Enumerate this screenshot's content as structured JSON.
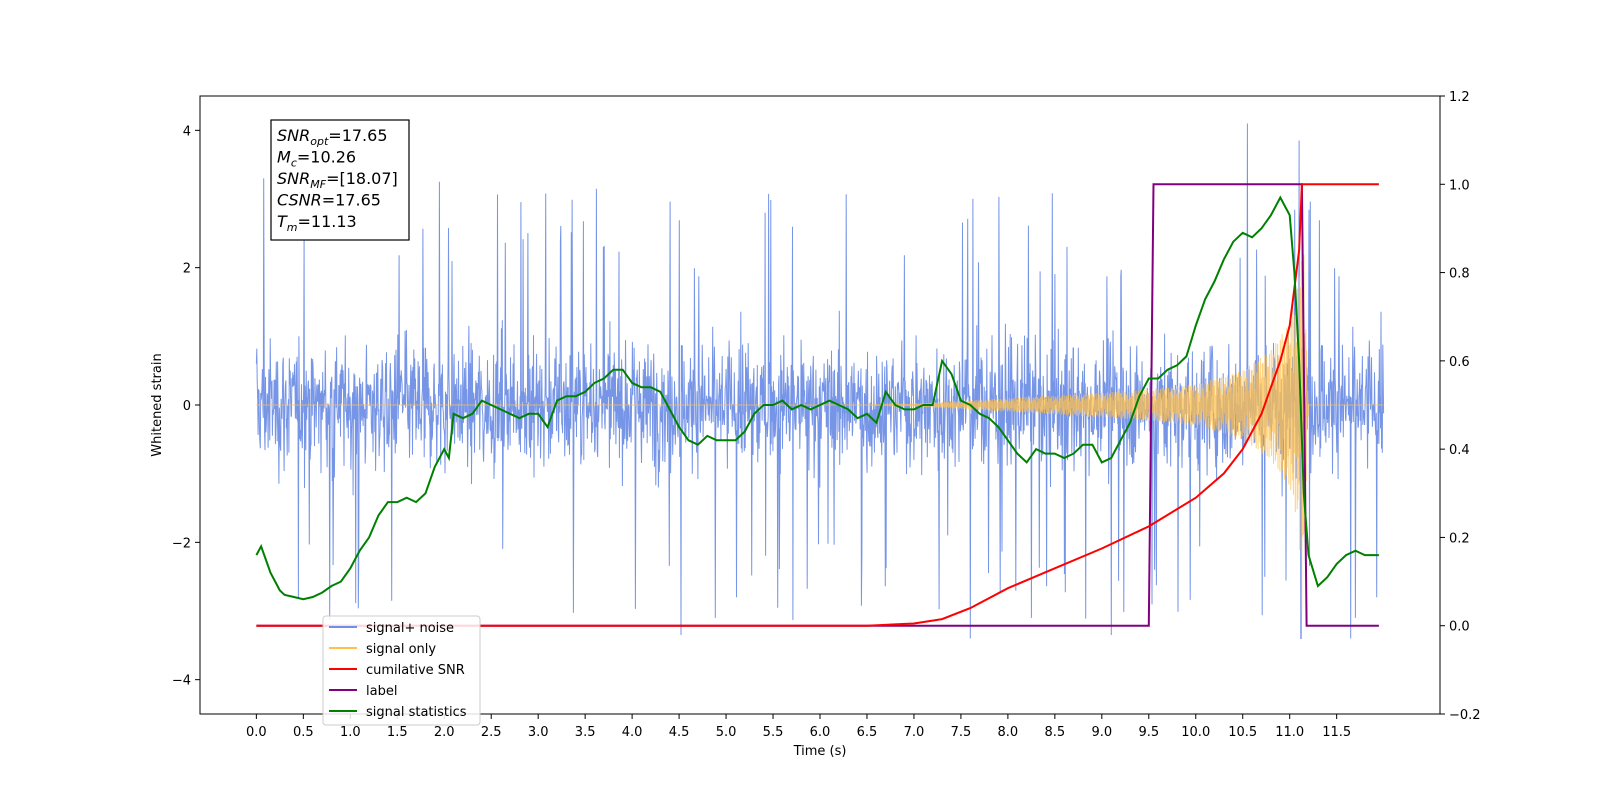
{
  "chart_data": {
    "type": "line",
    "title": "",
    "xlabel": "Time (s)",
    "ylabel": "Whitened strain",
    "y2label": "",
    "xlim": [
      -0.6,
      12.6
    ],
    "ylim": [
      -4.5,
      4.5
    ],
    "y2lim": [
      -0.2,
      1.2
    ],
    "x_ticks": [
      0.0,
      0.5,
      1.0,
      1.5,
      2.0,
      2.5,
      3.0,
      3.5,
      4.0,
      4.5,
      5.0,
      5.5,
      6.0,
      6.5,
      7.0,
      7.5,
      8.0,
      8.5,
      9.0,
      9.5,
      10.0,
      10.5,
      11.0,
      11.5
    ],
    "x_tick_labels": [
      "0.0",
      "0.5",
      "1.0",
      "1.5",
      "2.0",
      "2.5",
      "3.0",
      "3.5",
      "4.0",
      "4.5",
      "5.0",
      "5.5",
      "6.0",
      "6.5",
      "7.0",
      "7.5",
      "8.0",
      "8.5",
      "9.0",
      "9.5",
      "10.0",
      "10.5",
      "11.0",
      "11.5"
    ],
    "y_ticks": [
      -4,
      -2,
      0,
      2,
      4
    ],
    "y_tick_labels": [
      "−4",
      "−2",
      "0",
      "2",
      "4"
    ],
    "y2_ticks": [
      -0.2,
      0.0,
      0.2,
      0.4,
      0.6,
      0.8,
      1.0,
      1.2
    ],
    "y2_tick_labels": [
      "−0.2",
      "0.0",
      "0.2",
      "0.4",
      "0.6",
      "0.8",
      "1.0",
      "1.2"
    ],
    "grid": false,
    "legend": {
      "position": "lower-left",
      "entries": [
        {
          "label": "signal+ noise",
          "color": "#6f8fe6"
        },
        {
          "label": "signal only",
          "color": "#ffc04d"
        },
        {
          "label": "cumilative SNR",
          "color": "#ff0000"
        },
        {
          "label": "label",
          "color": "#800080"
        },
        {
          "label": "signal statistics",
          "color": "#008000"
        }
      ]
    },
    "annotation": {
      "position": "top-left",
      "lines": [
        {
          "base": "SNR",
          "sub": "opt",
          "value": "=17.65"
        },
        {
          "base": "M",
          "sub": "c",
          "value": "=10.26"
        },
        {
          "base": "SNR",
          "sub": "MF",
          "value": "=[18.07]"
        },
        {
          "base": "CSNR",
          "sub": "",
          "value": "=17.65"
        },
        {
          "base": "T",
          "sub": "m",
          "value": "=11.13"
        }
      ]
    },
    "series": [
      {
        "name": "signal+ noise",
        "axis": "left",
        "color": "#6f8fe6",
        "kind": "noise",
        "x_range": [
          0.0,
          12.0
        ],
        "core_amplitude": 1.7,
        "spike_range": [
          -3.4,
          4.1
        ],
        "peaks": [
          {
            "x": 0.08,
            "y": 3.3
          },
          {
            "x": 1.95,
            "y": 3.25
          },
          {
            "x": 4.52,
            "y": -3.35
          },
          {
            "x": 7.6,
            "y": -3.4
          },
          {
            "x": 9.1,
            "y": -3.35
          },
          {
            "x": 10.55,
            "y": 4.1
          },
          {
            "x": 11.1,
            "y": 3.85
          },
          {
            "x": 11.12,
            "y": -4.1
          },
          {
            "x": 11.65,
            "y": -3.55
          }
        ]
      },
      {
        "name": "signal only",
        "axis": "left",
        "color": "#ffc04d",
        "kind": "chirp",
        "x_range": [
          0.0,
          12.0
        ],
        "amp_vs_t": [
          [
            0.0,
            0.0
          ],
          [
            6.5,
            0.0
          ],
          [
            7.0,
            0.02
          ],
          [
            7.5,
            0.06
          ],
          [
            8.0,
            0.1
          ],
          [
            8.5,
            0.14
          ],
          [
            9.0,
            0.18
          ],
          [
            9.5,
            0.23
          ],
          [
            10.0,
            0.3
          ],
          [
            10.5,
            0.5
          ],
          [
            10.8,
            0.8
          ],
          [
            11.0,
            1.2
          ],
          [
            11.1,
            1.8
          ],
          [
            11.13,
            3.2
          ],
          [
            11.2,
            0.0
          ],
          [
            12.0,
            0.0
          ]
        ]
      },
      {
        "name": "cumilative SNR",
        "axis": "right",
        "color": "#ff0000",
        "x": [
          0.0,
          6.5,
          7.0,
          7.3,
          7.6,
          8.0,
          8.5,
          9.0,
          9.5,
          10.0,
          10.3,
          10.5,
          10.7,
          10.9,
          11.0,
          11.1,
          11.13,
          11.5,
          11.95
        ],
        "y": [
          0.0,
          0.0,
          0.005,
          0.015,
          0.04,
          0.085,
          0.13,
          0.175,
          0.225,
          0.29,
          0.345,
          0.4,
          0.48,
          0.6,
          0.68,
          0.85,
          1.0,
          1.0,
          1.0
        ]
      },
      {
        "name": "label",
        "axis": "right",
        "color": "#800080",
        "x": [
          0.0,
          9.5,
          9.55,
          11.13,
          11.18,
          11.95
        ],
        "y": [
          0.0,
          0.0,
          1.0,
          1.0,
          0.0,
          0.0
        ]
      },
      {
        "name": "signal statistics",
        "axis": "right",
        "color": "#008000",
        "x": [
          0.0,
          0.05,
          0.1,
          0.15,
          0.2,
          0.25,
          0.3,
          0.4,
          0.5,
          0.6,
          0.7,
          0.8,
          0.9,
          1.0,
          1.1,
          1.2,
          1.3,
          1.4,
          1.5,
          1.6,
          1.7,
          1.8,
          1.9,
          2.0,
          2.05,
          2.1,
          2.2,
          2.3,
          2.4,
          2.5,
          2.6,
          2.7,
          2.8,
          2.9,
          3.0,
          3.1,
          3.2,
          3.3,
          3.4,
          3.5,
          3.6,
          3.7,
          3.8,
          3.9,
          4.0,
          4.1,
          4.2,
          4.3,
          4.4,
          4.5,
          4.6,
          4.7,
          4.8,
          4.9,
          5.0,
          5.1,
          5.2,
          5.3,
          5.4,
          5.5,
          5.6,
          5.7,
          5.8,
          5.9,
          6.0,
          6.1,
          6.2,
          6.3,
          6.4,
          6.5,
          6.6,
          6.7,
          6.8,
          6.9,
          7.0,
          7.1,
          7.2,
          7.3,
          7.4,
          7.5,
          7.6,
          7.7,
          7.8,
          7.9,
          8.0,
          8.1,
          8.2,
          8.3,
          8.4,
          8.5,
          8.6,
          8.7,
          8.8,
          8.9,
          9.0,
          9.1,
          9.2,
          9.3,
          9.4,
          9.5,
          9.6,
          9.7,
          9.8,
          9.9,
          10.0,
          10.1,
          10.2,
          10.3,
          10.4,
          10.5,
          10.6,
          10.7,
          10.8,
          10.9,
          11.0,
          11.05,
          11.1,
          11.15,
          11.2,
          11.3,
          11.4,
          11.5,
          11.6,
          11.7,
          11.8,
          11.9,
          11.95
        ],
        "y": [
          0.16,
          0.18,
          0.15,
          0.12,
          0.1,
          0.08,
          0.07,
          0.065,
          0.06,
          0.065,
          0.075,
          0.09,
          0.1,
          0.13,
          0.17,
          0.2,
          0.25,
          0.28,
          0.28,
          0.29,
          0.28,
          0.3,
          0.36,
          0.4,
          0.38,
          0.48,
          0.47,
          0.48,
          0.51,
          0.5,
          0.49,
          0.48,
          0.47,
          0.48,
          0.48,
          0.45,
          0.51,
          0.52,
          0.52,
          0.53,
          0.55,
          0.56,
          0.58,
          0.58,
          0.55,
          0.54,
          0.54,
          0.53,
          0.49,
          0.45,
          0.42,
          0.41,
          0.43,
          0.42,
          0.42,
          0.42,
          0.44,
          0.48,
          0.5,
          0.5,
          0.51,
          0.49,
          0.5,
          0.49,
          0.5,
          0.51,
          0.5,
          0.49,
          0.47,
          0.48,
          0.46,
          0.53,
          0.5,
          0.49,
          0.49,
          0.5,
          0.5,
          0.6,
          0.57,
          0.51,
          0.5,
          0.48,
          0.47,
          0.45,
          0.42,
          0.39,
          0.37,
          0.4,
          0.39,
          0.39,
          0.38,
          0.39,
          0.41,
          0.41,
          0.37,
          0.38,
          0.42,
          0.46,
          0.52,
          0.56,
          0.56,
          0.58,
          0.59,
          0.61,
          0.68,
          0.74,
          0.78,
          0.83,
          0.87,
          0.89,
          0.88,
          0.9,
          0.93,
          0.97,
          0.93,
          0.8,
          0.6,
          0.3,
          0.16,
          0.09,
          0.11,
          0.14,
          0.16,
          0.17,
          0.16,
          0.16,
          0.16
        ]
      }
    ]
  }
}
